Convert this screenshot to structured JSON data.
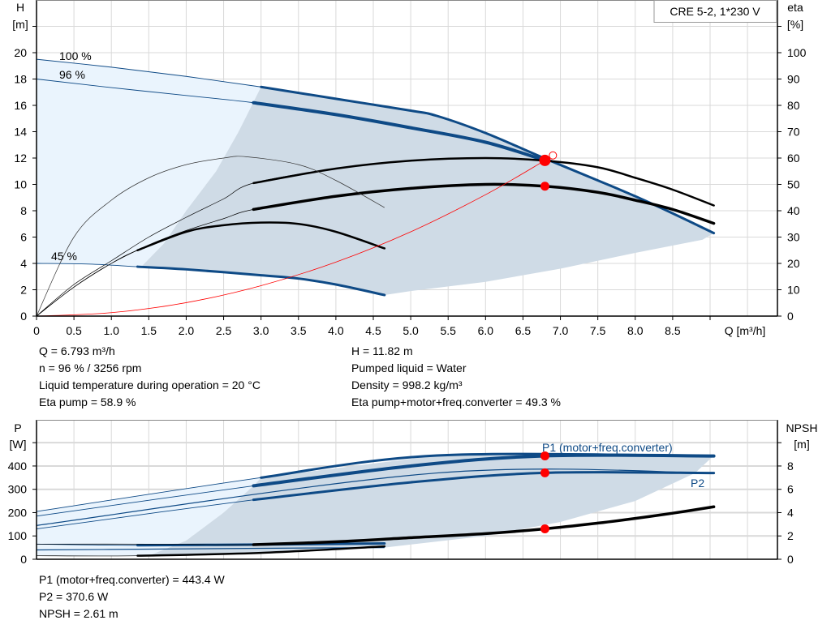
{
  "title_box": "CRE 5-2, 1*230 V",
  "top_chart": {
    "left_axis": {
      "label": "H",
      "unit": "[m]"
    },
    "right_axis": {
      "label": "eta",
      "unit": "[%]"
    },
    "x_axis": {
      "label": "Q [m³/h]"
    }
  },
  "bottom_chart": {
    "left_axis": {
      "label": "P",
      "unit": "[W]"
    },
    "right_axis": {
      "label": "NPSH",
      "unit": "[m]"
    }
  },
  "info_left": [
    "Q = 6.793 m³/h",
    "n = 96 % / 3256 rpm",
    "Liquid temperature during operation = 20 °C",
    "Eta pump = 58.9 %"
  ],
  "info_right": [
    "H = 11.82 m",
    "Pumped liquid = Water",
    "Density = 998.2 kg/m³",
    "Eta pump+motor+freq.converter = 49.3 %"
  ],
  "info_bottom": [
    "P1 (motor+freq.converter) = 443.4 W",
    "P2 = 370.6 W",
    "NPSH = 2.61 m"
  ],
  "colors": {
    "curve_blue": "#0e4a86",
    "eta_black": "#000000",
    "duty_red": "#ff0000",
    "range_light": "#eaf4fd",
    "range_gray": "#cfdbe6",
    "grid": "#d9d9d9"
  },
  "chart_data": [
    {
      "type": "line",
      "xlabel": "Q [m³/h]",
      "ylabel": "H [m]",
      "y2label": "eta [%]",
      "xlim": [
        0,
        9.9
      ],
      "ylim": [
        0,
        24
      ],
      "y2lim": [
        0,
        120
      ],
      "xticks": [
        "0",
        "0.5",
        "1.0",
        "1.5",
        "2.0",
        "2.5",
        "3.0",
        "3.5",
        "4.0",
        "4.5",
        "5.0",
        "5.5",
        "6.0",
        "6.5",
        "7.0",
        "7.5",
        "8.0",
        "8.5"
      ],
      "yticks": [
        "0",
        "2",
        "4",
        "6",
        "8",
        "10",
        "12",
        "14",
        "16",
        "18",
        "20"
      ],
      "y2ticks": [
        "0",
        "10",
        "20",
        "30",
        "40",
        "50",
        "60",
        "70",
        "80",
        "90",
        "100"
      ],
      "grid": true,
      "areas": [
        {
          "kind": "light",
          "points": [
            [
              0,
              19.5
            ],
            [
              1,
              18.9
            ],
            [
              2,
              18.2
            ],
            [
              3,
              17.4
            ],
            [
              2.7,
              14
            ],
            [
              2.4,
              11
            ],
            [
              2,
              8
            ],
            [
              1.7,
              5.5
            ],
            [
              1.4,
              3.75
            ],
            [
              0.7,
              3.95
            ],
            [
              0,
              4
            ]
          ]
        },
        {
          "kind": "gray",
          "points": [
            [
              3,
              17.4
            ],
            [
              4,
              16.5
            ],
            [
              5,
              15.6
            ],
            [
              5.35,
              15.2
            ],
            [
              6,
              13.9
            ],
            [
              6.8,
              11.95
            ],
            [
              7.5,
              10.3
            ],
            [
              8,
              9.1
            ],
            [
              8.5,
              7.8
            ],
            [
              9.05,
              6.3
            ],
            [
              8.9,
              5.8
            ],
            [
              8,
              4.8
            ],
            [
              7,
              3.6
            ],
            [
              6,
              2.6
            ],
            [
              5,
              1.9
            ],
            [
              4.65,
              1.6
            ],
            [
              4,
              2.4
            ],
            [
              3.5,
              2.85
            ],
            [
              3,
              3.1
            ],
            [
              2,
              3.55
            ],
            [
              1.4,
              3.75
            ],
            [
              1.7,
              5.5
            ],
            [
              2,
              8
            ],
            [
              2.4,
              11
            ],
            [
              2.7,
              14
            ]
          ]
        }
      ],
      "series": [
        {
          "name": "100 %",
          "axis": "H",
          "kind": "speed",
          "range": [
            3,
            9.05
          ],
          "points": [
            [
              0,
              19.5
            ],
            [
              1,
              18.9
            ],
            [
              2,
              18.2
            ],
            [
              3,
              17.4
            ],
            [
              4,
              16.5
            ],
            [
              5,
              15.6
            ],
            [
              5.35,
              15.2
            ],
            [
              6,
              13.9
            ],
            [
              6.8,
              11.95
            ],
            [
              7.5,
              10.3
            ],
            [
              8,
              9.1
            ],
            [
              8.5,
              7.8
            ],
            [
              9.05,
              6.3
            ]
          ]
        },
        {
          "name": "96 %",
          "axis": "H",
          "kind": "speed-main",
          "range": [
            2.9,
            6.793
          ],
          "points": [
            [
              0,
              18
            ],
            [
              1,
              17.35
            ],
            [
              2,
              16.75
            ],
            [
              2.9,
              16.2
            ],
            [
              4,
              15.3
            ],
            [
              5,
              14.3
            ],
            [
              6,
              13.2
            ],
            [
              6.793,
              11.82
            ]
          ]
        },
        {
          "name": "45 %",
          "axis": "H",
          "kind": "speed",
          "range": [
            1.35,
            4.65
          ],
          "points": [
            [
              0,
              4
            ],
            [
              0.7,
              3.95
            ],
            [
              1.35,
              3.75
            ],
            [
              2,
              3.55
            ],
            [
              3,
              3.1
            ],
            [
              3.5,
              2.85
            ],
            [
              4,
              2.4
            ],
            [
              4.65,
              1.6
            ]
          ]
        },
        {
          "axis": "eta",
          "kind": "eta",
          "range": [
            2.9,
            9.05
          ],
          "points": [
            [
              0,
              0
            ],
            [
              0.5,
              12
            ],
            [
              1,
              21
            ],
            [
              1.5,
              30
            ],
            [
              2,
              37.5
            ],
            [
              2.5,
              44.5
            ],
            [
              2.9,
              50.5
            ],
            [
              4,
              56
            ],
            [
              5,
              59
            ],
            [
              6,
              60
            ],
            [
              6.8,
              59
            ],
            [
              7.5,
              56.5
            ],
            [
              8,
              52.5
            ],
            [
              8.5,
              48
            ],
            [
              9.05,
              42
            ]
          ]
        },
        {
          "axis": "eta",
          "kind": "eta-main",
          "range": [
            2.9,
            9.05
          ],
          "points": [
            [
              0,
              0
            ],
            [
              0.5,
              11
            ],
            [
              1,
              20
            ],
            [
              1.5,
              27
            ],
            [
              2,
              32.5
            ],
            [
              2.5,
              37
            ],
            [
              2.9,
              40.5
            ],
            [
              4,
              45.5
            ],
            [
              5,
              48.5
            ],
            [
              6,
              50
            ],
            [
              6.793,
              49.3
            ],
            [
              7.5,
              47
            ],
            [
              8,
              44
            ],
            [
              8.5,
              40.5
            ],
            [
              9.05,
              35.2
            ]
          ]
        },
        {
          "axis": "eta",
          "kind": "eta-thin",
          "range": null,
          "points": [
            [
              0,
              0
            ],
            [
              0.5,
              30
            ],
            [
              1,
              44
            ],
            [
              1.5,
              52.5
            ],
            [
              2,
              57.5
            ],
            [
              2.5,
              60
            ],
            [
              2.8,
              60.5
            ],
            [
              3.5,
              57.5
            ],
            [
              4,
              51.5
            ],
            [
              4.65,
              41.2
            ]
          ]
        },
        {
          "axis": "eta",
          "kind": "eta",
          "range": [
            1.35,
            4.65
          ],
          "points": [
            [
              0,
              0
            ],
            [
              0.5,
              11
            ],
            [
              1,
              20
            ],
            [
              1.35,
              25
            ],
            [
              2,
              32
            ],
            [
              2.5,
              34.5
            ],
            [
              3,
              35.5
            ],
            [
              3.5,
              35
            ],
            [
              4,
              32
            ],
            [
              4.65,
              25.7
            ]
          ]
        },
        {
          "axis": "H",
          "kind": "system",
          "range": null,
          "points": [
            [
              0,
              0
            ],
            [
              1,
              0.26
            ],
            [
              2,
              1.02
            ],
            [
              3,
              2.31
            ],
            [
              4,
              4.1
            ],
            [
              5,
              6.4
            ],
            [
              6,
              9.22
            ],
            [
              6.793,
              11.82
            ],
            [
              6.9,
              12.2
            ]
          ]
        }
      ],
      "duty_points": [
        {
          "q": 6.793,
          "axis": "H",
          "value": 11.82,
          "style": "large"
        },
        {
          "q": 6.793,
          "axis": "eta",
          "value": 49.3,
          "style": "normal"
        },
        {
          "q": 6.9,
          "axis": "H",
          "value": 12.2,
          "style": "open"
        }
      ]
    },
    {
      "type": "line",
      "ylabel": "P [W]",
      "y2label": "NPSH [m]",
      "xlim": [
        0,
        9.9
      ],
      "ylim": [
        0,
        598
      ],
      "y2lim": [
        0,
        11.96
      ],
      "yticks": [
        "0",
        "100",
        "200",
        "300",
        "400"
      ],
      "y2ticks": [
        "0",
        "2",
        "4",
        "6",
        "8"
      ],
      "grid": true,
      "areas": [
        {
          "kind": "light",
          "points": [
            [
              0,
              205
            ],
            [
              3,
              350
            ],
            [
              2.9,
              315
            ],
            [
              2.5,
              200
            ],
            [
              2,
              80
            ],
            [
              1.5,
              15
            ],
            [
              0,
              15
            ],
            [
              0,
              40
            ]
          ]
        },
        {
          "kind": "gray",
          "points": [
            [
              3,
              350
            ],
            [
              5.35,
              445
            ],
            [
              9.05,
              445
            ],
            [
              8.8,
              370
            ],
            [
              8,
              250
            ],
            [
              7,
              160
            ],
            [
              6,
              100
            ],
            [
              4.65,
              50
            ],
            [
              3,
              30
            ],
            [
              1.5,
              15
            ],
            [
              2,
              80
            ],
            [
              2.5,
              200
            ],
            [
              2.9,
              315
            ]
          ]
        }
      ],
      "series": [
        {
          "axis": "P",
          "kind": "speed",
          "range": [
            3,
            9.05
          ],
          "points": [
            [
              0,
              205
            ],
            [
              3,
              350
            ],
            [
              5.35,
              445
            ],
            [
              9.05,
              443
            ]
          ]
        },
        {
          "name": "P1 (motor+freq.converter)",
          "axis": "P",
          "kind": "speed-main",
          "range": [
            2.9,
            9.05
          ],
          "points": [
            [
              0,
              185
            ],
            [
              2.9,
              315
            ],
            [
              5,
              400
            ],
            [
              6.793,
              443.4
            ],
            [
              9.05,
              443
            ]
          ]
        },
        {
          "axis": "P",
          "kind": "speed-thin",
          "range": null,
          "points": [
            [
              0,
              145
            ],
            [
              5.35,
              370
            ],
            [
              9.05,
              370
            ]
          ]
        },
        {
          "name": "P2",
          "axis": "P",
          "kind": "speed",
          "range": [
            2.9,
            9.05
          ],
          "points": [
            [
              0,
              130
            ],
            [
              2.9,
              255
            ],
            [
              5,
              330
            ],
            [
              6.793,
              370.6
            ],
            [
              9.05,
              370
            ]
          ]
        },
        {
          "axis": "P",
          "kind": "speed",
          "range": [
            1.35,
            4.65
          ],
          "points": [
            [
              0,
              65
            ],
            [
              1.35,
              60
            ],
            [
              3,
              63
            ],
            [
              4.65,
              68
            ]
          ]
        },
        {
          "axis": "P",
          "kind": "speed-thin",
          "range": null,
          "points": [
            [
              0,
              40
            ],
            [
              1.35,
              43
            ],
            [
              3,
              47
            ],
            [
              4.65,
              50
            ]
          ]
        },
        {
          "axis": "NPSH",
          "kind": "eta-main",
          "range": [
            2.9,
            9.05
          ],
          "points": [
            [
              0,
              1.3
            ],
            [
              1.5,
              1.3
            ],
            [
              2.9,
              1.25
            ],
            [
              4,
              1.5
            ],
            [
              5,
              1.85
            ],
            [
              6,
              2.2
            ],
            [
              6.793,
              2.61
            ],
            [
              7.5,
              3.1
            ],
            [
              8,
              3.5
            ],
            [
              8.5,
              3.95
            ],
            [
              9.05,
              4.5
            ]
          ]
        },
        {
          "axis": "NPSH",
          "kind": "eta",
          "range": [
            1.35,
            4.65
          ],
          "points": [
            [
              0,
              0.3
            ],
            [
              1.35,
              0.3
            ],
            [
              3,
              0.55
            ],
            [
              4.65,
              1.1
            ]
          ]
        }
      ],
      "duty_points": [
        {
          "q": 6.793,
          "axis": "P",
          "value": 443.4,
          "style": "normal"
        },
        {
          "q": 6.793,
          "axis": "P",
          "value": 370.6,
          "style": "normal"
        },
        {
          "q": 6.793,
          "axis": "NPSH",
          "value": 2.61,
          "style": "normal"
        }
      ]
    }
  ]
}
